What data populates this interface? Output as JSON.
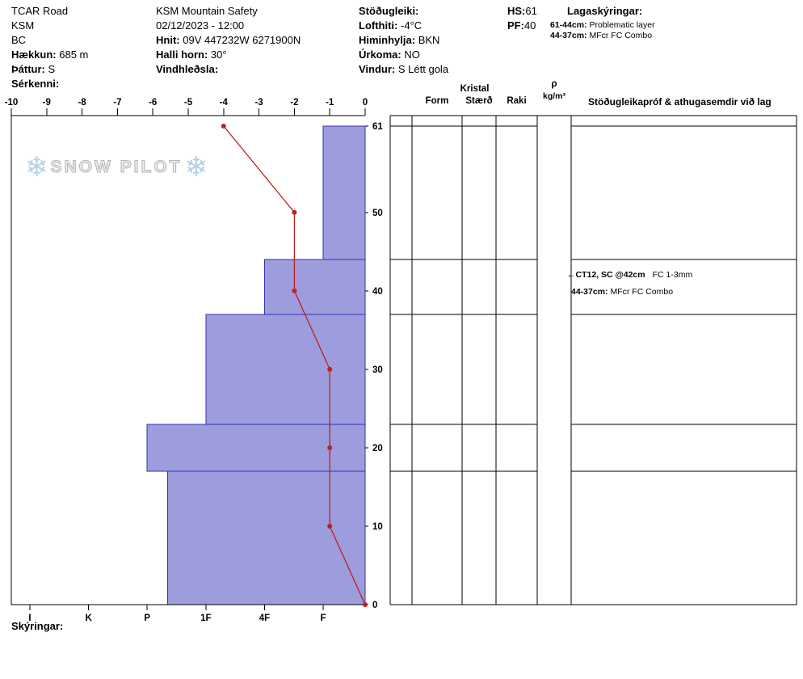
{
  "header": {
    "site": {
      "name": "TCAR Road",
      "area": "KSM",
      "region": "BC",
      "elevation_label": "Hækkun:",
      "elevation": "685 m",
      "aspect_label": "Þáttur:",
      "aspect": "S",
      "feature_label": "Sérkenni:",
      "feature": ""
    },
    "observer": {
      "org": "KSM Mountain Safety",
      "datetime": "02/12/2023 - 12:00",
      "coords_label": "Hnit:",
      "coords": "09V 447232W 6271900N",
      "slope_label": "Halli horn:",
      "slope": "30°",
      "wind_loading_label": "Vindhleðsla:",
      "wind_loading": ""
    },
    "conditions": {
      "stability_label": "Stöðugleiki:",
      "stability": "",
      "air_temp_label": "Lofthiti:",
      "air_temp": "-4°C",
      "sky_label": "Himinhylja:",
      "sky": "BKN",
      "precip_label": "Úrkoma:",
      "precip": "NO",
      "wind_label": "Vindur:",
      "wind": "S Létt gola"
    },
    "totals": {
      "hs_label": "HS:",
      "hs": "61",
      "pf_label": "PF:",
      "pf": "40"
    },
    "layer_legend": {
      "title": "Lagaskýringar:",
      "notes": [
        {
          "range": "61-44cm:",
          "text": "Problematic layer"
        },
        {
          "range": "44-37cm:",
          "text": "MFcr FC Combo"
        }
      ]
    }
  },
  "chart_data": {
    "type": "bar",
    "subtype": "snow-profile",
    "hs_cm": 61,
    "depth_ticks": [
      0,
      10,
      20,
      30,
      40,
      50,
      61
    ],
    "temp_axis": {
      "min": -10,
      "max": 0,
      "unit": "°C",
      "ticks": [
        -10,
        -9,
        -8,
        -7,
        -6,
        -5,
        -4,
        -3,
        -2,
        -1,
        0
      ]
    },
    "hardness_axis": {
      "labels": [
        "I",
        "K",
        "P",
        "1F",
        "4F",
        "F"
      ]
    },
    "layers": [
      {
        "top_cm": 61,
        "bottom_cm": 44,
        "hardness": "F"
      },
      {
        "top_cm": 44,
        "bottom_cm": 37,
        "hardness": "4F"
      },
      {
        "top_cm": 37,
        "bottom_cm": 23,
        "hardness": "1F"
      },
      {
        "top_cm": 23,
        "bottom_cm": 17,
        "hardness": "P"
      },
      {
        "top_cm": 17,
        "bottom_cm": 0,
        "hardness": "P-"
      }
    ],
    "temperature_profile": [
      {
        "depth_cm": 61,
        "temp_c": -4
      },
      {
        "depth_cm": 50,
        "temp_c": -2
      },
      {
        "depth_cm": 40,
        "temp_c": -2
      },
      {
        "depth_cm": 30,
        "temp_c": -1
      },
      {
        "depth_cm": 20,
        "temp_c": -1
      },
      {
        "depth_cm": 10,
        "temp_c": -1
      },
      {
        "depth_cm": 0,
        "temp_c": 0
      }
    ],
    "colors": {
      "layer_fill": "#9d9cdd",
      "layer_border": "#3232b4",
      "temp_line": "#c02020",
      "grid": "#000000"
    }
  },
  "table": {
    "kristal_header": "Kristal",
    "columns": [
      "Form",
      "Stærð",
      "Raki"
    ],
    "density_symbol": "ρ",
    "density_unit": "kg/m³",
    "comments_header": "Stöðugleikapróf & athugasemdir við lag",
    "annotations": [
      {
        "depth_cm": 42,
        "arrow": "←",
        "bold": "CT12, SC @42cm",
        "text": "FC 1-3mm"
      },
      {
        "bold": "44-37cm:",
        "text": "MFcr FC Combo"
      }
    ]
  },
  "footer": {
    "legend_label": "Skýringar:"
  },
  "watermark": {
    "flake": "❄",
    "text": "SNOW PILOT"
  }
}
